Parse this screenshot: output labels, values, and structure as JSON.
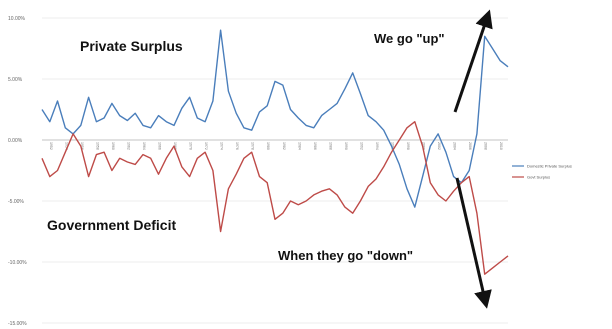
{
  "chart_data": {
    "type": "line",
    "ylim": [
      -15,
      10
    ],
    "yticks": [
      "10.00%",
      "5.00%",
      "0.00%",
      "-5.00%",
      "-10.00%",
      "-15.00%"
    ],
    "ytick_values": [
      10,
      5,
      0,
      -5,
      -10,
      -15
    ],
    "x_range": [
      1952,
      2012
    ],
    "xtick_labels": [
      "1952",
      "1954",
      "1956",
      "1958",
      "1960",
      "1962",
      "1964",
      "1966",
      "1968",
      "1970",
      "1972",
      "1974",
      "1976",
      "1978",
      "1980",
      "1982",
      "1984",
      "1986",
      "1988",
      "1990",
      "1992",
      "1994",
      "1996",
      "1998",
      "2000",
      "2002",
      "2004",
      "2006",
      "2008",
      "2010"
    ],
    "grid": true,
    "legend_position": "right",
    "series": [
      {
        "name": "Domestic Private Surplus",
        "color": "#4a7ebb",
        "points": [
          [
            1952,
            2.5
          ],
          [
            1953,
            1.5
          ],
          [
            1954,
            3.2
          ],
          [
            1955,
            1.0
          ],
          [
            1956,
            0.5
          ],
          [
            1957,
            1.2
          ],
          [
            1958,
            3.5
          ],
          [
            1959,
            1.5
          ],
          [
            1960,
            1.8
          ],
          [
            1961,
            3.0
          ],
          [
            1962,
            2.0
          ],
          [
            1963,
            1.6
          ],
          [
            1964,
            2.2
          ],
          [
            1965,
            1.2
          ],
          [
            1966,
            1.0
          ],
          [
            1967,
            2.0
          ],
          [
            1968,
            1.5
          ],
          [
            1969,
            1.2
          ],
          [
            1970,
            2.6
          ],
          [
            1971,
            3.5
          ],
          [
            1972,
            1.8
          ],
          [
            1973,
            1.5
          ],
          [
            1974,
            3.2
          ],
          [
            1975,
            9.0
          ],
          [
            1976,
            4.0
          ],
          [
            1977,
            2.2
          ],
          [
            1978,
            1.0
          ],
          [
            1979,
            0.8
          ],
          [
            1980,
            2.3
          ],
          [
            1981,
            2.8
          ],
          [
            1982,
            4.8
          ],
          [
            1983,
            4.5
          ],
          [
            1984,
            2.5
          ],
          [
            1985,
            1.8
          ],
          [
            1986,
            1.2
          ],
          [
            1987,
            1.0
          ],
          [
            1988,
            2.0
          ],
          [
            1989,
            2.5
          ],
          [
            1990,
            3.0
          ],
          [
            1991,
            4.2
          ],
          [
            1992,
            5.5
          ],
          [
            1993,
            3.8
          ],
          [
            1994,
            2.0
          ],
          [
            1995,
            1.5
          ],
          [
            1996,
            0.8
          ],
          [
            1997,
            -0.5
          ],
          [
            1998,
            -2.0
          ],
          [
            1999,
            -4.0
          ],
          [
            2000,
            -5.5
          ],
          [
            2001,
            -3.0
          ],
          [
            2002,
            -0.5
          ],
          [
            2003,
            0.5
          ],
          [
            2004,
            -1.0
          ],
          [
            2005,
            -3.0
          ],
          [
            2006,
            -3.5
          ],
          [
            2007,
            -2.5
          ],
          [
            2008,
            0.5
          ],
          [
            2009,
            8.5
          ],
          [
            2010,
            7.5
          ],
          [
            2011,
            6.5
          ],
          [
            2012,
            6.0
          ]
        ]
      },
      {
        "name": "Govt Surplus",
        "color": "#be4b48",
        "points": [
          [
            1952,
            -1.5
          ],
          [
            1953,
            -3.0
          ],
          [
            1954,
            -2.5
          ],
          [
            1955,
            -1.0
          ],
          [
            1956,
            0.5
          ],
          [
            1957,
            -0.5
          ],
          [
            1958,
            -3.0
          ],
          [
            1959,
            -1.2
          ],
          [
            1960,
            -1.0
          ],
          [
            1961,
            -2.5
          ],
          [
            1962,
            -1.5
          ],
          [
            1963,
            -1.8
          ],
          [
            1964,
            -2.0
          ],
          [
            1965,
            -1.2
          ],
          [
            1966,
            -1.5
          ],
          [
            1967,
            -2.8
          ],
          [
            1968,
            -1.5
          ],
          [
            1969,
            -0.5
          ],
          [
            1970,
            -2.2
          ],
          [
            1971,
            -3.0
          ],
          [
            1972,
            -1.5
          ],
          [
            1973,
            -1.0
          ],
          [
            1974,
            -2.5
          ],
          [
            1975,
            -7.5
          ],
          [
            1976,
            -4.0
          ],
          [
            1977,
            -2.8
          ],
          [
            1978,
            -1.5
          ],
          [
            1979,
            -1.0
          ],
          [
            1980,
            -3.0
          ],
          [
            1981,
            -3.5
          ],
          [
            1982,
            -6.5
          ],
          [
            1983,
            -6.0
          ],
          [
            1984,
            -5.0
          ],
          [
            1985,
            -5.3
          ],
          [
            1986,
            -5.0
          ],
          [
            1987,
            -4.5
          ],
          [
            1988,
            -4.2
          ],
          [
            1989,
            -4.0
          ],
          [
            1990,
            -4.5
          ],
          [
            1991,
            -5.5
          ],
          [
            1992,
            -6.0
          ],
          [
            1993,
            -5.0
          ],
          [
            1994,
            -3.8
          ],
          [
            1995,
            -3.2
          ],
          [
            1996,
            -2.2
          ],
          [
            1997,
            -1.0
          ],
          [
            1998,
            0.0
          ],
          [
            1999,
            1.0
          ],
          [
            2000,
            1.5
          ],
          [
            2001,
            -0.5
          ],
          [
            2002,
            -3.5
          ],
          [
            2003,
            -4.5
          ],
          [
            2004,
            -5.0
          ],
          [
            2005,
            -4.2
          ],
          [
            2006,
            -3.5
          ],
          [
            2007,
            -3.0
          ],
          [
            2008,
            -6.0
          ],
          [
            2009,
            -11.0
          ],
          [
            2010,
            -10.5
          ],
          [
            2011,
            -10.0
          ],
          [
            2012,
            -9.5
          ]
        ]
      }
    ],
    "annotations": {
      "private_surplus": "Private Surplus",
      "government_deficit": "Government Deficit",
      "we_go_up": "We go \"up\"",
      "when_they_go_down": "When they go \"down\""
    }
  }
}
